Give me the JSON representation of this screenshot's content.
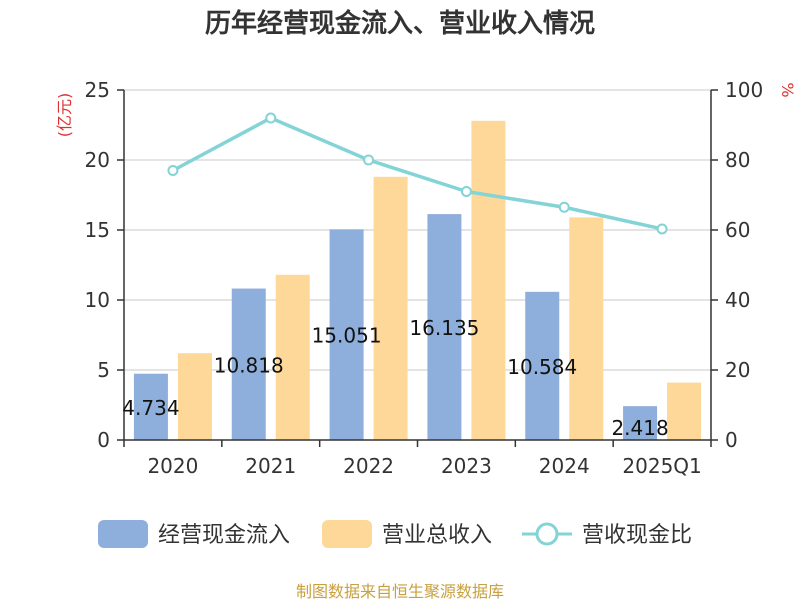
{
  "chart_data": {
    "type": "bar",
    "title": "历年经营现金流入、营业收入情况",
    "categories": [
      "2020",
      "2021",
      "2022",
      "2023",
      "2024",
      "2025Q1"
    ],
    "series": [
      {
        "name": "经营现金流入",
        "kind": "bar",
        "axis": "left",
        "color": "#8eaedb",
        "values": [
          4.734,
          10.818,
          15.051,
          16.135,
          10.584,
          2.418
        ],
        "labels": [
          "4.734",
          "10.818",
          "15.051",
          "16.135",
          "10.584",
          "2.418"
        ]
      },
      {
        "name": "营业总收入",
        "kind": "bar",
        "axis": "left",
        "color": "#fdd898",
        "values": [
          6.2,
          11.8,
          18.8,
          22.8,
          15.9,
          4.1
        ]
      },
      {
        "name": "营收现金比",
        "kind": "line",
        "axis": "right",
        "color": "#83d3d7",
        "values": [
          77,
          92,
          80,
          71,
          66.5,
          60.3
        ]
      }
    ],
    "y_left": {
      "unit": "(亿元)",
      "unit_color": "#e03030",
      "min": 0,
      "max": 25,
      "ticks": [
        0,
        5,
        10,
        15,
        20,
        25
      ]
    },
    "y_right": {
      "unit": "%",
      "unit_color": "#e03030",
      "min": 0,
      "max": 100,
      "ticks": [
        0,
        20,
        40,
        60,
        80,
        100
      ]
    },
    "grid": true,
    "legend_position": "bottom"
  },
  "source": {
    "text": "制图数据来自恒生聚源数据库",
    "color": "#c8a040"
  }
}
